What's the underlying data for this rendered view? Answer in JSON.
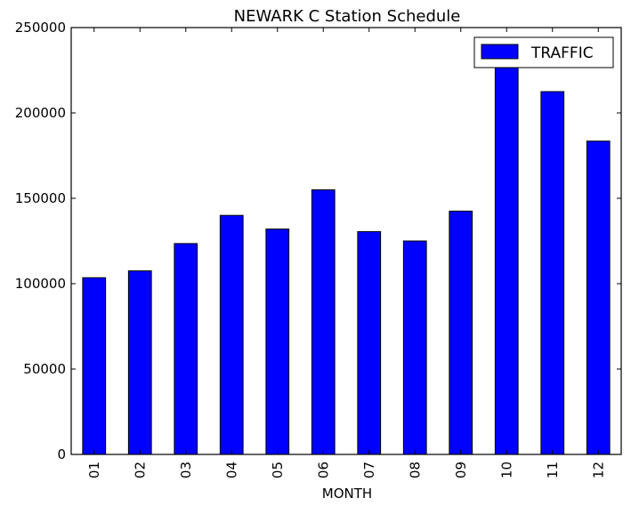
{
  "chart_data": {
    "type": "bar",
    "title": "NEWARK C Station Schedule",
    "xlabel": "MONTH",
    "ylabel": "",
    "categories": [
      "01",
      "02",
      "03",
      "04",
      "05",
      "06",
      "07",
      "08",
      "09",
      "10",
      "11",
      "12"
    ],
    "series": [
      {
        "name": "TRAFFIC",
        "color": "#0000ff",
        "values": [
          103500,
          107500,
          123500,
          140000,
          132000,
          155000,
          130500,
          125000,
          142500,
          226500,
          212500,
          183500
        ]
      }
    ],
    "ylim": [
      0,
      250000
    ],
    "yticks": [
      0,
      50000,
      100000,
      150000,
      200000,
      250000
    ],
    "ytick_labels": [
      "0",
      "50000",
      "100000",
      "150000",
      "200000",
      "250000"
    ],
    "grid": false,
    "legend": "top-right"
  }
}
